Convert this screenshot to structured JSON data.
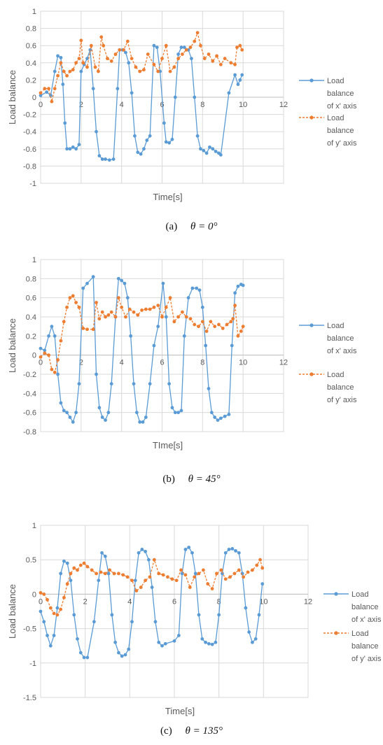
{
  "charts": [
    {
      "caption_label": "(a)",
      "caption_theta": "θ = 0°",
      "chart_data": {
        "type": "line",
        "xlabel": "Time[s]",
        "ylabel": "Load balance",
        "xlim": [
          0,
          12
        ],
        "ylim": [
          -1,
          1
        ],
        "x_ticks": [
          "0",
          "2",
          "4",
          "6",
          "8",
          "10",
          "12"
        ],
        "y_ticks": [
          "-1",
          "-0.8",
          "-0.6",
          "-0.4",
          "-0.2",
          "0",
          "0.2",
          "0.4",
          "0.6",
          "0.8",
          "1"
        ],
        "x_tick_values": [
          0,
          2,
          4,
          6,
          8,
          10,
          12
        ],
        "y_tick_values": [
          -1,
          -0.8,
          -0.6,
          -0.4,
          -0.2,
          0,
          0.2,
          0.4,
          0.6,
          0.8,
          1
        ],
        "legend_position": "right",
        "series": [
          {
            "name": "Load balance of x' axis",
            "color": "#5b9bd5",
            "style": "solid",
            "x": [
              0,
              0.3,
              0.5,
              0.7,
              0.85,
              1.0,
              1.1,
              1.2,
              1.3,
              1.45,
              1.6,
              1.75,
              1.9,
              2.0,
              2.15,
              2.3,
              2.45,
              2.6,
              2.75,
              2.9,
              3.05,
              3.2,
              3.4,
              3.6,
              3.8,
              3.9,
              4.05,
              4.2,
              4.35,
              4.5,
              4.65,
              4.8,
              4.95,
              5.1,
              5.25,
              5.4,
              5.6,
              5.75,
              5.9,
              6.1,
              6.2,
              6.35,
              6.5,
              6.65,
              6.8,
              6.95,
              7.1,
              7.3,
              7.45,
              7.6,
              7.75,
              7.9,
              8.05,
              8.2,
              8.35,
              8.5,
              8.65,
              8.8,
              8.9,
              9.3,
              9.6,
              9.75,
              9.85,
              9.95
            ],
            "y": [
              0.02,
              0.06,
              0.02,
              0.3,
              0.48,
              0.46,
              0.15,
              -0.3,
              -0.6,
              -0.6,
              -0.58,
              -0.6,
              -0.55,
              0.3,
              0.38,
              0.45,
              0.55,
              0.1,
              -0.4,
              -0.68,
              -0.72,
              -0.72,
              -0.73,
              -0.72,
              0.1,
              0.55,
              0.55,
              0.52,
              0.4,
              0.05,
              -0.45,
              -0.64,
              -0.66,
              -0.6,
              -0.5,
              -0.45,
              0.6,
              0.58,
              0.3,
              -0.3,
              -0.52,
              -0.53,
              -0.49,
              0.0,
              0.5,
              0.58,
              0.58,
              0.55,
              0.45,
              0.0,
              -0.45,
              -0.6,
              -0.62,
              -0.65,
              -0.58,
              -0.6,
              -0.63,
              -0.65,
              -0.67,
              0.05,
              0.26,
              0.15,
              0.2,
              0.26
            ]
          },
          {
            "name": "Load balance of y' axis",
            "color": "#ed7d31",
            "style": "dashed",
            "x": [
              0,
              0.2,
              0.4,
              0.55,
              0.7,
              0.85,
              1.0,
              1.15,
              1.3,
              1.45,
              1.6,
              1.75,
              1.9,
              2.0,
              2.1,
              2.3,
              2.5,
              2.7,
              2.85,
              3.0,
              3.1,
              3.3,
              3.5,
              3.7,
              3.9,
              4.1,
              4.3,
              4.5,
              4.7,
              4.9,
              5.1,
              5.3,
              5.6,
              5.8,
              6.0,
              6.2,
              6.4,
              6.6,
              6.8,
              7.0,
              7.2,
              7.4,
              7.6,
              7.75,
              7.9,
              8.1,
              8.3,
              8.5,
              8.7,
              8.9,
              9.1,
              9.4,
              9.6,
              9.7,
              9.85,
              9.95
            ],
            "y": [
              0.05,
              0.1,
              0.1,
              -0.05,
              0.1,
              0.25,
              0.4,
              0.3,
              0.25,
              0.3,
              0.32,
              0.4,
              0.45,
              0.66,
              0.4,
              0.35,
              0.6,
              0.35,
              0.3,
              0.7,
              0.6,
              0.45,
              0.42,
              0.5,
              0.55,
              0.55,
              0.65,
              0.45,
              0.35,
              0.3,
              0.32,
              0.5,
              0.38,
              0.3,
              0.45,
              0.6,
              0.3,
              0.35,
              0.45,
              0.5,
              0.55,
              0.58,
              0.65,
              0.75,
              0.6,
              0.45,
              0.5,
              0.42,
              0.48,
              0.38,
              0.45,
              0.4,
              0.38,
              0.58,
              0.6,
              0.55
            ]
          }
        ]
      }
    },
    {
      "caption_label": "(b)",
      "caption_theta": "θ = 45°",
      "chart_data": {
        "type": "line",
        "xlabel": "TIme[s]",
        "ylabel": "Load balance",
        "xlim": [
          0,
          12
        ],
        "ylim": [
          -0.8,
          1
        ],
        "x_ticks": [
          "0",
          "2",
          "4",
          "6",
          "8",
          "10",
          "12"
        ],
        "y_ticks": [
          "-0.8",
          "-0.6",
          "-0.4",
          "-0.2",
          "0",
          "0.2",
          "0.4",
          "0.6",
          "0.8",
          "1"
        ],
        "x_tick_values": [
          0,
          2,
          4,
          6,
          8,
          10,
          12
        ],
        "y_tick_values": [
          -0.8,
          -0.6,
          -0.4,
          -0.2,
          0,
          0.2,
          0.4,
          0.6,
          0.8,
          1
        ],
        "legend_position": "right",
        "series": [
          {
            "name": "Load balance of x' axis",
            "color": "#5b9bd5",
            "style": "solid",
            "x": [
              0,
              0.2,
              0.4,
              0.55,
              0.7,
              0.85,
              1.0,
              1.15,
              1.3,
              1.45,
              1.6,
              1.75,
              1.9,
              2.1,
              2.3,
              2.6,
              2.75,
              2.9,
              3.05,
              3.2,
              3.35,
              3.5,
              3.7,
              3.85,
              4.0,
              4.15,
              4.3,
              4.45,
              4.6,
              4.75,
              4.9,
              5.05,
              5.2,
              5.4,
              5.6,
              5.8,
              6.05,
              6.2,
              6.35,
              6.5,
              6.65,
              6.8,
              6.95,
              7.1,
              7.3,
              7.5,
              7.7,
              7.85,
              8.0,
              8.15,
              8.3,
              8.45,
              8.6,
              8.75,
              8.9,
              9.1,
              9.3,
              9.45,
              9.6,
              9.75,
              9.9,
              10.0
            ],
            "y": [
              0.07,
              0.05,
              0.2,
              0.3,
              0.2,
              -0.2,
              -0.5,
              -0.58,
              -0.6,
              -0.65,
              -0.7,
              -0.6,
              -0.3,
              0.7,
              0.75,
              0.82,
              -0.2,
              -0.55,
              -0.65,
              -0.68,
              -0.6,
              -0.3,
              0.4,
              0.8,
              0.78,
              0.75,
              0.6,
              0.2,
              -0.3,
              -0.6,
              -0.7,
              -0.7,
              -0.65,
              -0.3,
              0.1,
              0.3,
              0.75,
              0.4,
              -0.3,
              -0.55,
              -0.6,
              -0.6,
              -0.58,
              0.2,
              0.6,
              0.7,
              0.7,
              0.68,
              0.5,
              0.1,
              -0.35,
              -0.6,
              -0.65,
              -0.68,
              -0.66,
              -0.64,
              -0.62,
              0.1,
              0.65,
              0.72,
              0.74,
              0.73
            ]
          },
          {
            "name": "Load balance of y' axis",
            "color": "#ed7d31",
            "style": "dashed",
            "x": [
              0,
              0.2,
              0.4,
              0.55,
              0.7,
              0.85,
              1.0,
              1.15,
              1.3,
              1.45,
              1.6,
              1.75,
              1.9,
              2.1,
              2.3,
              2.6,
              2.75,
              2.9,
              3.05,
              3.2,
              3.35,
              3.5,
              3.7,
              3.85,
              4.0,
              4.2,
              4.4,
              4.6,
              4.8,
              5.0,
              5.2,
              5.4,
              5.6,
              5.8,
              6.0,
              6.2,
              6.4,
              6.6,
              6.8,
              7.0,
              7.2,
              7.4,
              7.6,
              7.8,
              8.0,
              8.2,
              8.4,
              8.6,
              8.8,
              9.0,
              9.2,
              9.4,
              9.5,
              9.6,
              9.75,
              9.9,
              10.0
            ],
            "y": [
              -0.02,
              0.02,
              0.0,
              -0.15,
              -0.18,
              -0.05,
              0.15,
              0.35,
              0.5,
              0.6,
              0.62,
              0.55,
              0.5,
              0.28,
              0.27,
              0.27,
              0.55,
              0.38,
              0.45,
              0.4,
              0.42,
              0.45,
              0.4,
              0.6,
              0.5,
              0.4,
              0.48,
              0.45,
              0.42,
              0.47,
              0.48,
              0.48,
              0.5,
              0.52,
              0.4,
              0.5,
              0.6,
              0.35,
              0.4,
              0.45,
              0.4,
              0.38,
              0.32,
              0.3,
              0.35,
              0.25,
              0.35,
              0.3,
              0.32,
              0.28,
              0.32,
              0.35,
              0.38,
              0.52,
              0.2,
              0.25,
              0.3
            ]
          }
        ]
      }
    },
    {
      "caption_label": "(c)",
      "caption_theta": "θ = 135°",
      "chart_data": {
        "type": "line",
        "xlabel": "Time[s]",
        "ylabel": "Load balance",
        "xlim": [
          0,
          12
        ],
        "ylim": [
          -1.5,
          1
        ],
        "x_ticks": [
          "0",
          "2",
          "4",
          "6",
          "8",
          "10",
          "12"
        ],
        "y_ticks": [
          "-1.5",
          "-1",
          "-0.5",
          "0",
          "0.5",
          "1"
        ],
        "x_tick_values": [
          0,
          2,
          4,
          6,
          8,
          10,
          12
        ],
        "y_tick_values": [
          -1.5,
          -1,
          -0.5,
          0,
          0.5,
          1
        ],
        "legend_position": "right",
        "series": [
          {
            "name": "Load balance of x' axis",
            "color": "#5b9bd5",
            "style": "solid",
            "x": [
              0,
              0.15,
              0.3,
              0.45,
              0.6,
              0.75,
              0.9,
              1.05,
              1.2,
              1.35,
              1.5,
              1.65,
              1.8,
              1.95,
              2.1,
              2.4,
              2.6,
              2.75,
              2.9,
              3.05,
              3.2,
              3.35,
              3.5,
              3.65,
              3.8,
              3.95,
              4.1,
              4.25,
              4.4,
              4.55,
              4.7,
              4.85,
              5.0,
              5.15,
              5.3,
              5.45,
              5.6,
              6.0,
              6.2,
              6.35,
              6.5,
              6.65,
              6.8,
              6.95,
              7.1,
              7.25,
              7.4,
              7.55,
              7.7,
              7.85,
              8.0,
              8.15,
              8.3,
              8.45,
              8.6,
              8.75,
              8.9,
              9.05,
              9.2,
              9.35,
              9.5,
              9.65,
              9.8,
              9.95
            ],
            "y": [
              -0.25,
              -0.4,
              -0.6,
              -0.75,
              -0.6,
              -0.2,
              0.3,
              0.48,
              0.45,
              0.2,
              -0.3,
              -0.65,
              -0.85,
              -0.92,
              -0.92,
              -0.4,
              0.2,
              0.6,
              0.55,
              0.3,
              -0.3,
              -0.7,
              -0.85,
              -0.9,
              -0.88,
              -0.8,
              -0.4,
              0.2,
              0.6,
              0.65,
              0.62,
              0.5,
              0.1,
              -0.4,
              -0.7,
              -0.75,
              -0.72,
              -0.68,
              -0.6,
              0.3,
              0.65,
              0.68,
              0.6,
              0.3,
              -0.3,
              -0.65,
              -0.7,
              -0.72,
              -0.73,
              -0.7,
              -0.3,
              0.3,
              0.6,
              0.65,
              0.66,
              0.63,
              0.6,
              0.3,
              -0.2,
              -0.55,
              -0.7,
              -0.65,
              -0.3,
              0.15
            ]
          },
          {
            "name": "Load balance of y' axis",
            "color": "#ed7d31",
            "style": "dashed",
            "x": [
              0,
              0.15,
              0.3,
              0.45,
              0.6,
              0.75,
              0.9,
              1.05,
              1.2,
              1.35,
              1.5,
              1.65,
              1.8,
              1.95,
              2.1,
              2.3,
              2.5,
              2.7,
              2.9,
              3.1,
              3.3,
              3.5,
              3.7,
              3.9,
              4.1,
              4.3,
              4.5,
              4.7,
              4.9,
              5.1,
              5.3,
              5.5,
              5.7,
              5.9,
              6.1,
              6.3,
              6.5,
              6.7,
              6.9,
              7.1,
              7.3,
              7.5,
              7.7,
              7.9,
              8.1,
              8.3,
              8.5,
              8.7,
              8.9,
              9.1,
              9.3,
              9.5,
              9.7,
              9.85,
              9.95
            ],
            "y": [
              0.02,
              0.0,
              -0.08,
              -0.2,
              -0.28,
              -0.3,
              -0.22,
              -0.05,
              0.15,
              0.3,
              0.38,
              0.35,
              0.42,
              0.45,
              0.4,
              0.35,
              0.3,
              0.32,
              0.3,
              0.35,
              0.3,
              0.3,
              0.28,
              0.25,
              0.2,
              0.05,
              0.1,
              0.2,
              0.25,
              0.5,
              0.3,
              0.28,
              0.25,
              0.22,
              0.2,
              0.35,
              0.28,
              0.1,
              0.25,
              0.3,
              0.35,
              0.15,
              0.08,
              0.3,
              0.35,
              0.22,
              0.25,
              0.3,
              0.35,
              0.25,
              0.32,
              0.35,
              0.42,
              0.5,
              0.38
            ]
          }
        ]
      }
    }
  ]
}
